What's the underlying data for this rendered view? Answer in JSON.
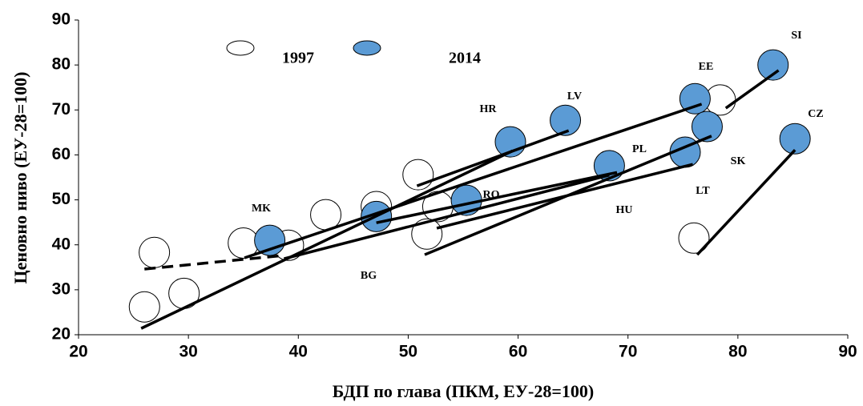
{
  "chart_data": {
    "type": "scatter",
    "x_label": "БДП по глава (ПКМ, ЕУ-28=100)",
    "y_label": "Ценовно ниво (ЕУ-28=100)",
    "xlim": [
      20,
      90
    ],
    "xticks": [
      20,
      30,
      40,
      50,
      60,
      70,
      80,
      90
    ],
    "ylim": [
      20,
      90
    ],
    "yticks": [
      20,
      30,
      40,
      50,
      60,
      70,
      80,
      90
    ],
    "series": [
      {
        "name": "1997",
        "color": "#ffffff",
        "x": [
          26.0,
          29.6,
          26.9,
          35.0,
          39.1,
          42.5,
          47.1,
          50.9,
          52.7,
          51.7,
          76.0,
          78.4
        ],
        "values": [
          26.2,
          29.2,
          38.3,
          40.4,
          39.9,
          46.7,
          48.5,
          55.6,
          48.5,
          42.4,
          41.5,
          72.2
        ]
      },
      {
        "name": "2014",
        "color": "#5b9bd5",
        "x": [
          37.4,
          47.1,
          55.3,
          59.3,
          64.3,
          68.3,
          75.2,
          76.1,
          77.2,
          83.2,
          85.2
        ],
        "values": [
          41.0,
          46.3,
          49.9,
          62.9,
          67.7,
          57.6,
          60.6,
          72.5,
          66.3,
          80.0,
          63.6
        ]
      }
    ],
    "segments": [
      {
        "x": [
          25.7,
          59.5
        ],
        "values": [
          21.4,
          60.9
        ],
        "dashed": false
      },
      {
        "x": [
          35.1,
          76.7
        ],
        "values": [
          37.1,
          71.3
        ],
        "dashed": false
      },
      {
        "x": [
          50.8,
          64.6
        ],
        "values": [
          53.1,
          65.4
        ],
        "dashed": false
      },
      {
        "x": [
          51.5,
          77.6
        ],
        "values": [
          37.8,
          64.2
        ],
        "dashed": false
      },
      {
        "x": [
          47.1,
          69.0
        ],
        "values": [
          44.9,
          56.1
        ],
        "dashed": false
      },
      {
        "x": [
          52.6,
          75.9
        ],
        "values": [
          43.7,
          57.9
        ],
        "dashed": false
      },
      {
        "x": [
          38.7,
          68.3
        ],
        "values": [
          36.9,
          55.5
        ],
        "dashed": false
      },
      {
        "x": [
          78.9,
          83.7
        ],
        "values": [
          70.4,
          78.8
        ],
        "dashed": false
      },
      {
        "x": [
          76.3,
          85.2
        ],
        "values": [
          37.8,
          61.1
        ],
        "dashed": false
      },
      {
        "x": [
          26.0,
          38.5
        ],
        "values": [
          34.6,
          37.6
        ],
        "dashed": true
      }
    ],
    "annotations": [
      "SI",
      "EE",
      "LV",
      "HR",
      "CZ",
      "PL",
      "SK",
      "RO",
      "MK",
      "LT",
      "HU",
      "BG"
    ]
  }
}
